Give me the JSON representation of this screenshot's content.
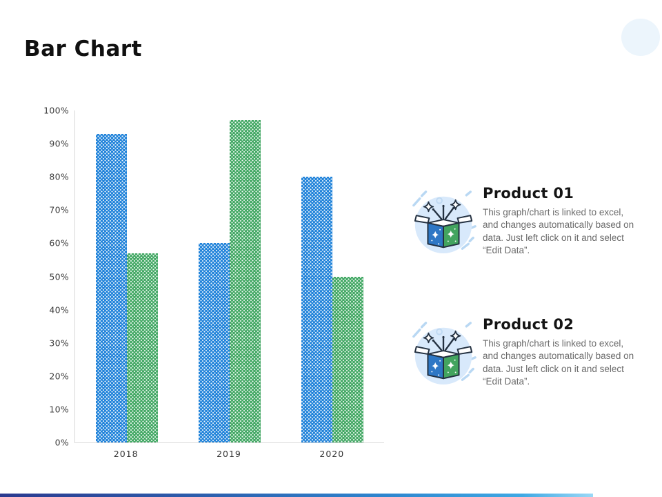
{
  "slide": {
    "title": "Bar Chart"
  },
  "chart_data": {
    "type": "bar",
    "title": "",
    "categories": [
      "2018",
      "2019",
      "2020"
    ],
    "series": [
      {
        "name": "Product 01",
        "color": "#1B80D9",
        "values": [
          93,
          60,
          80
        ]
      },
      {
        "name": "Product 02",
        "color": "#3EA660",
        "values": [
          57,
          97,
          50
        ]
      }
    ],
    "yticks": [
      "0%",
      "10%",
      "20%",
      "30%",
      "40%",
      "50%",
      "60%",
      "70%",
      "80%",
      "90%",
      "100%"
    ],
    "ylim": [
      0,
      100
    ],
    "grid": false,
    "legend": "none",
    "bar_pattern": "white-dots"
  },
  "products": [
    {
      "heading": "Product 01",
      "body": "This graph/chart is linked to excel, and changes automatically based on data. Just left click on it and select “Edit Data”."
    },
    {
      "heading": "Product 02",
      "body": "This graph/chart is linked to excel, and changes automatically based on data. Just left click on it and select “Edit Data”."
    }
  ],
  "decor": {
    "accent_bar_colors": [
      "#2B3A8F",
      "#2E86CF",
      "#9AD8F6"
    ],
    "corner_blob_color": "#ECF5FC",
    "icon_colors": {
      "circle": "#D8E9FB",
      "box_left": "#2E77C5",
      "box_right": "#43A45F",
      "outline": "#233040",
      "dash": "#B9D8F3"
    }
  }
}
